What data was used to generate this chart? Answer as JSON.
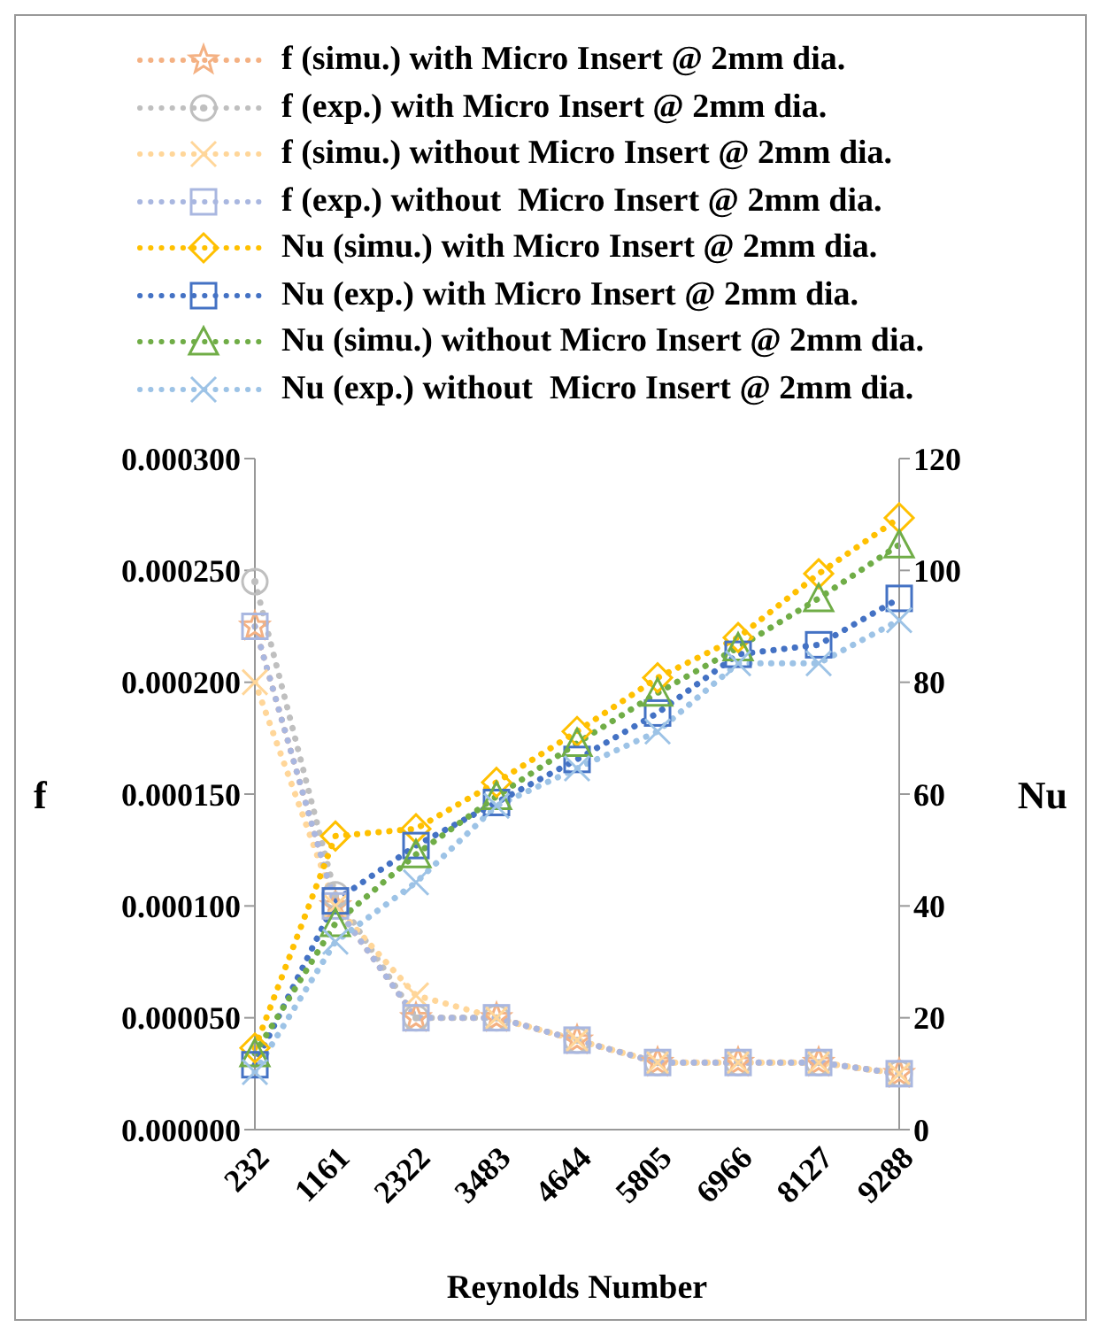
{
  "chart_data": {
    "type": "line",
    "xlabel": "Reynolds Number",
    "ylabel": "f",
    "y2label": "Nu",
    "categories": [
      "232",
      "1161",
      "2322",
      "3483",
      "4644",
      "5805",
      "6966",
      "8127",
      "9288"
    ],
    "ylim": [
      0,
      0.0003
    ],
    "yticks": [
      {
        "value": 0,
        "label": "0.000000"
      },
      {
        "value": 5e-05,
        "label": "0.000050"
      },
      {
        "value": 0.0001,
        "label": "0.000100"
      },
      {
        "value": 0.00015,
        "label": "0.000150"
      },
      {
        "value": 0.0002,
        "label": "0.000200"
      },
      {
        "value": 0.00025,
        "label": "0.000250"
      },
      {
        "value": 0.0003,
        "label": "0.000300"
      }
    ],
    "y2lim": [
      0,
      120
    ],
    "y2ticks": [
      0,
      20,
      40,
      60,
      80,
      100,
      120
    ],
    "grid": false,
    "legend": "top",
    "line_style": "dotted",
    "series": [
      {
        "name": "f (simu.) with Micro Insert @ 2mm dia.",
        "color": "#f4b183",
        "marker": "star",
        "values": [
          0.000225,
          0.0001,
          5e-05,
          5e-05,
          4e-05,
          3e-05,
          3e-05,
          3e-05,
          2.5e-05
        ]
      },
      {
        "name": "f (exp.) with Micro Insert @ 2mm dia.",
        "color": "#bfbfbf",
        "marker": "circle",
        "values": [
          0.000245,
          0.000105,
          5e-05,
          5e-05,
          4e-05,
          3e-05,
          3e-05,
          3e-05,
          2.5e-05
        ]
      },
      {
        "name": "f (simu.) without Micro Insert @ 2mm dia.",
        "color": "#ffd699",
        "marker": "cross",
        "values": [
          0.0002,
          0.0001,
          6e-05,
          5e-05,
          4e-05,
          3e-05,
          3e-05,
          3e-05,
          2.5e-05
        ]
      },
      {
        "name": "f (exp.) without  Micro Insert @ 2mm dia.",
        "color": "#a9b7e0",
        "marker": "square",
        "values": [
          0.000225,
          0.0001,
          5e-05,
          5e-05,
          4e-05,
          3e-05,
          3e-05,
          3e-05,
          2.5e-05
        ]
      },
      {
        "name": "Nu (simu.) with Micro Insert @ 2mm dia.",
        "color": "#ffc000",
        "marker": "diamond",
        "axis": "y2",
        "values": [
          14.6,
          52.5,
          53.8,
          62.1,
          71.2,
          80.8,
          88,
          99.4,
          109.4
        ]
      },
      {
        "name": "Nu (exp.) with Micro Insert @ 2mm dia.",
        "color": "#4472c4",
        "marker": "square",
        "axis": "y2",
        "values": [
          11.6,
          40.9,
          50.8,
          58.5,
          66.2,
          74.5,
          85,
          86.7,
          95
        ]
      },
      {
        "name": "Nu (simu.) without Micro Insert @ 2mm dia.",
        "color": "#70ad47",
        "marker": "triangle",
        "axis": "y2",
        "values": [
          13.6,
          36.9,
          49.2,
          59.6,
          69.1,
          78.1,
          86.2,
          95,
          104.6
        ]
      },
      {
        "name": "Nu (exp.) without  Micro Insert @ 2mm dia.",
        "color": "#9dc3e6",
        "marker": "cross",
        "axis": "y2",
        "values": [
          10.3,
          33.6,
          44.2,
          57.9,
          64.6,
          71.2,
          83.4,
          83.4,
          91.1
        ]
      }
    ]
  }
}
